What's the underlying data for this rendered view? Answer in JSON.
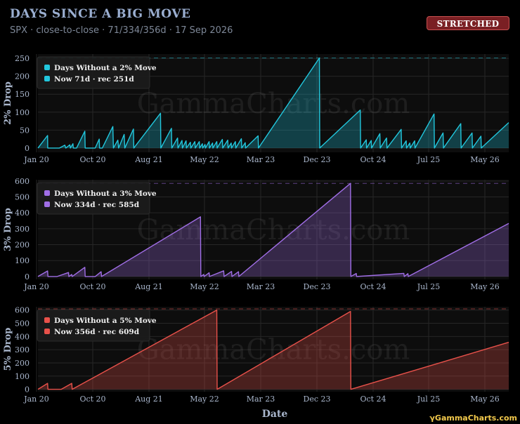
{
  "header": {
    "title": "DAYS SINCE A BIG MOVE",
    "subtitle": "SPX · close-to-close · 71/334/356d · 17 Sep 2026",
    "badge": "STRETCHED"
  },
  "footer": {
    "text": "GammaCharts.com",
    "icon": "gamma-glyph"
  },
  "watermark": "GammaCharts.com",
  "colors": {
    "background": "#000000",
    "panel": "#0d0d0d",
    "badge": "#7a1f23"
  },
  "chart_data": [
    {
      "type": "area",
      "ylabel": "2% Drop",
      "xlabel": "",
      "ylim": [
        -12,
        262
      ],
      "yticks": [
        0,
        50,
        100,
        150,
        200,
        250
      ],
      "x_tick_labels": [
        "Jan 20",
        "Oct 20",
        "Aug 21",
        "May 22",
        "Mar 23",
        "Dec 23",
        "Oct 24",
        "Jul 25",
        "May 26"
      ],
      "color": "#22c7dd",
      "record_line": 251,
      "legend": {
        "series_label": "Days Without a 2% Move",
        "now_label": "Now 71d · rec 251d",
        "position": "top-left"
      },
      "grid": true,
      "x_range": [
        "2020-01-01",
        "2026-09-17"
      ],
      "series": [
        {
          "points": [
            [
              "2020-01-01",
              0
            ],
            [
              "2020-02-20",
              35
            ],
            [
              "2020-02-21",
              0
            ],
            [
              "2020-03-20",
              0
            ],
            [
              "2020-04-10",
              0
            ],
            [
              "2020-04-22",
              0
            ],
            [
              "2020-05-20",
              8
            ],
            [
              "2020-05-25",
              0
            ],
            [
              "2020-06-15",
              9
            ],
            [
              "2020-06-18",
              0
            ],
            [
              "2020-07-01",
              12
            ],
            [
              "2020-07-03",
              0
            ],
            [
              "2020-07-20",
              0
            ],
            [
              "2020-09-01",
              47
            ],
            [
              "2020-09-03",
              0
            ],
            [
              "2020-10-01",
              0
            ],
            [
              "2020-10-25",
              0
            ],
            [
              "2020-11-15",
              25
            ],
            [
              "2020-11-17",
              0
            ],
            [
              "2020-12-01",
              0
            ],
            [
              "2021-01-25",
              60
            ],
            [
              "2021-01-28",
              0
            ],
            [
              "2021-02-20",
              22
            ],
            [
              "2021-02-24",
              0
            ],
            [
              "2021-03-25",
              38
            ],
            [
              "2021-03-28",
              0
            ],
            [
              "2021-05-12",
              53
            ],
            [
              "2021-05-14",
              0
            ],
            [
              "2021-09-30",
              97
            ],
            [
              "2021-10-02",
              0
            ],
            [
              "2021-11-26",
              55
            ],
            [
              "2021-11-28",
              0
            ],
            [
              "2021-12-28",
              28
            ],
            [
              "2021-12-30",
              0
            ],
            [
              "2022-01-20",
              21
            ],
            [
              "2022-01-22",
              0
            ],
            [
              "2022-02-10",
              20
            ],
            [
              "2022-02-12",
              0
            ],
            [
              "2022-03-05",
              16
            ],
            [
              "2022-03-07",
              0
            ],
            [
              "2022-03-28",
              18
            ],
            [
              "2022-03-30",
              0
            ],
            [
              "2022-04-20",
              18
            ],
            [
              "2022-04-22",
              0
            ],
            [
              "2022-05-06",
              12
            ],
            [
              "2022-05-08",
              0
            ],
            [
              "2022-05-20",
              10
            ],
            [
              "2022-05-22",
              0
            ],
            [
              "2022-06-10",
              18
            ],
            [
              "2022-06-12",
              0
            ],
            [
              "2022-06-28",
              14
            ],
            [
              "2022-06-30",
              0
            ],
            [
              "2022-07-20",
              18
            ],
            [
              "2022-07-22",
              0
            ],
            [
              "2022-08-18",
              24
            ],
            [
              "2022-08-20",
              0
            ],
            [
              "2022-09-15",
              22
            ],
            [
              "2022-09-17",
              0
            ],
            [
              "2022-10-03",
              14
            ],
            [
              "2022-10-05",
              0
            ],
            [
              "2022-10-25",
              18
            ],
            [
              "2022-10-27",
              0
            ],
            [
              "2022-11-25",
              26
            ],
            [
              "2022-11-27",
              0
            ],
            [
              "2022-12-15",
              15
            ],
            [
              "2022-12-17",
              0
            ],
            [
              "2023-02-20",
              34
            ],
            [
              "2023-02-22",
              0
            ],
            [
              "2024-01-05",
              251
            ],
            [
              "2024-01-07",
              0
            ],
            [
              "2024-08-05",
              106
            ],
            [
              "2024-08-07",
              0
            ],
            [
              "2024-09-05",
              23
            ],
            [
              "2024-09-07",
              0
            ],
            [
              "2024-10-01",
              21
            ],
            [
              "2024-10-03",
              0
            ],
            [
              "2024-11-15",
              40
            ],
            [
              "2024-11-17",
              0
            ],
            [
              "2024-12-20",
              28
            ],
            [
              "2024-12-22",
              0
            ],
            [
              "2025-03-06",
              52
            ],
            [
              "2025-03-08",
              0
            ],
            [
              "2025-04-01",
              20
            ],
            [
              "2025-04-03",
              0
            ],
            [
              "2025-04-20",
              14
            ],
            [
              "2025-04-22",
              0
            ],
            [
              "2025-05-15",
              20
            ],
            [
              "2025-05-17",
              0
            ],
            [
              "2025-08-24",
              95
            ],
            [
              "2025-08-26",
              0
            ],
            [
              "2025-10-10",
              42
            ],
            [
              "2025-10-12",
              0
            ],
            [
              "2026-01-10",
              68
            ],
            [
              "2026-01-12",
              0
            ],
            [
              "2026-03-10",
              42
            ],
            [
              "2026-03-12",
              0
            ],
            [
              "2026-04-25",
              33
            ],
            [
              "2026-04-27",
              0
            ],
            [
              "2026-09-17",
              71
            ]
          ]
        }
      ]
    },
    {
      "type": "area",
      "ylabel": "3% Drop",
      "xlabel": "",
      "ylim": [
        -18,
        608
      ],
      "yticks": [
        0,
        100,
        200,
        300,
        400,
        500,
        600
      ],
      "x_tick_labels": [
        "Jan 20",
        "Oct 20",
        "Aug 21",
        "May 22",
        "Mar 23",
        "Dec 23",
        "Oct 24",
        "Jul 25",
        "May 26"
      ],
      "color": "#a06ee6",
      "record_line": 585,
      "legend": {
        "series_label": "Days Without a 3% Move",
        "now_label": "Now 334d · rec 585d",
        "position": "top-left"
      },
      "grid": true,
      "x_range": [
        "2020-01-01",
        "2026-09-17"
      ],
      "series": [
        {
          "points": [
            [
              "2020-01-01",
              0
            ],
            [
              "2020-02-20",
              35
            ],
            [
              "2020-02-22",
              0
            ],
            [
              "2020-04-01",
              0
            ],
            [
              "2020-04-10",
              0
            ],
            [
              "2020-06-08",
              25
            ],
            [
              "2020-06-10",
              0
            ],
            [
              "2020-06-25",
              13
            ],
            [
              "2020-06-27",
              0
            ],
            [
              "2020-09-01",
              58
            ],
            [
              "2020-09-03",
              0
            ],
            [
              "2020-10-01",
              0
            ],
            [
              "2020-10-25",
              0
            ],
            [
              "2020-11-25",
              30
            ],
            [
              "2020-11-27",
              0
            ],
            [
              "2022-04-26",
              375
            ],
            [
              "2022-04-28",
              0
            ],
            [
              "2022-05-13",
              13
            ],
            [
              "2022-05-15",
              0
            ],
            [
              "2022-06-10",
              24
            ],
            [
              "2022-06-12",
              0
            ],
            [
              "2022-08-25",
              36
            ],
            [
              "2022-08-27",
              0
            ],
            [
              "2022-10-05",
              32
            ],
            [
              "2022-10-07",
              0
            ],
            [
              "2022-11-10",
              30
            ],
            [
              "2022-11-12",
              0
            ],
            [
              "2024-06-15",
              585
            ],
            [
              "2024-06-17",
              0
            ],
            [
              "2024-07-15",
              19
            ],
            [
              "2024-07-17",
              0
            ],
            [
              "2025-03-20",
              20
            ],
            [
              "2025-03-22",
              0
            ],
            [
              "2025-04-10",
              18
            ],
            [
              "2025-04-12",
              0
            ],
            [
              "2026-09-17",
              334
            ]
          ]
        }
      ]
    },
    {
      "type": "area",
      "ylabel": "5% Drop",
      "xlabel": "Date",
      "ylim": [
        -18,
        625
      ],
      "yticks": [
        0,
        100,
        200,
        300,
        400,
        500,
        600
      ],
      "x_tick_labels": [
        "Jan 20",
        "Oct 20",
        "Aug 21",
        "May 22",
        "Mar 23",
        "Dec 23",
        "Oct 24",
        "Jul 25",
        "May 26"
      ],
      "color": "#e8514a",
      "record_line": 609,
      "legend": {
        "series_label": "Days Without a 5% Move",
        "now_label": "Now 356d · rec 609d",
        "position": "top-left"
      },
      "grid": true,
      "x_range": [
        "2020-01-01",
        "2026-09-17"
      ],
      "series": [
        {
          "points": [
            [
              "2020-01-01",
              0
            ],
            [
              "2020-02-20",
              45
            ],
            [
              "2020-02-22",
              0
            ],
            [
              "2020-03-25",
              0
            ],
            [
              "2020-05-01",
              0
            ],
            [
              "2020-06-25",
              45
            ],
            [
              "2020-06-27",
              0
            ],
            [
              "2022-07-20",
              600
            ],
            [
              "2022-07-22",
              0
            ],
            [
              "2024-06-15",
              590
            ],
            [
              "2024-06-17",
              0
            ],
            [
              "2026-09-17",
              356
            ]
          ]
        }
      ]
    }
  ]
}
